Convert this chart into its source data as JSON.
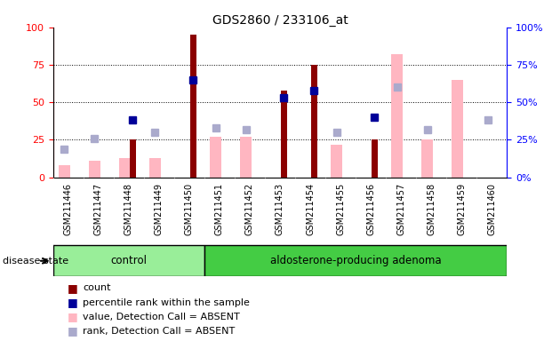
{
  "title": "GDS2860 / 233106_at",
  "samples": [
    "GSM211446",
    "GSM211447",
    "GSM211448",
    "GSM211449",
    "GSM211450",
    "GSM211451",
    "GSM211452",
    "GSM211453",
    "GSM211454",
    "GSM211455",
    "GSM211456",
    "GSM211457",
    "GSM211458",
    "GSM211459",
    "GSM211460"
  ],
  "count": [
    0,
    0,
    25,
    0,
    95,
    0,
    0,
    58,
    75,
    0,
    25,
    0,
    0,
    0,
    0
  ],
  "percentile_rank": [
    null,
    null,
    38,
    null,
    65,
    null,
    null,
    53,
    58,
    null,
    40,
    null,
    null,
    null,
    null
  ],
  "value_absent": [
    8,
    11,
    13,
    13,
    null,
    27,
    27,
    null,
    null,
    22,
    null,
    82,
    25,
    65,
    null
  ],
  "rank_absent": [
    19,
    26,
    null,
    30,
    null,
    33,
    32,
    null,
    null,
    30,
    null,
    60,
    32,
    null,
    38
  ],
  "control_count": 5,
  "adenoma_count": 10,
  "ylim": [
    0,
    100
  ],
  "yticks": [
    0,
    25,
    50,
    75,
    100
  ],
  "bar_color_count": "#8B0000",
  "bar_color_value_absent": "#FFB6C1",
  "dot_color_rank": "#000099",
  "dot_color_rank_absent": "#AAAACC",
  "color_control": "#99EE99",
  "color_adenoma": "#44CC44",
  "legend_items": [
    {
      "label": "count",
      "color": "#8B0000"
    },
    {
      "label": "percentile rank within the sample",
      "color": "#000099"
    },
    {
      "label": "value, Detection Call = ABSENT",
      "color": "#FFB6C1"
    },
    {
      "label": "rank, Detection Call = ABSENT",
      "color": "#AAAACC"
    }
  ]
}
